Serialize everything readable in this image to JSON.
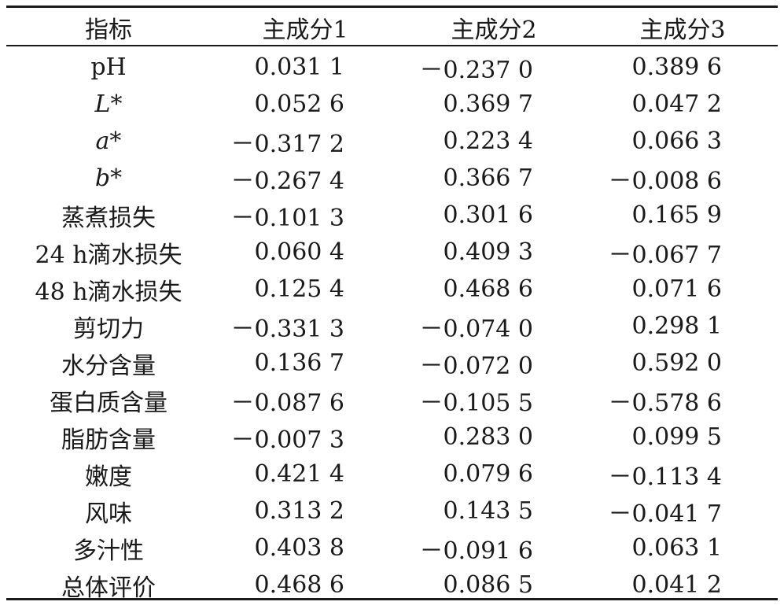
{
  "table": {
    "headers": [
      "指标",
      "主成分1",
      "主成分2",
      "主成分3"
    ],
    "rows": [
      {
        "label": "pH",
        "italic": false,
        "v": [
          "0.031 1",
          "－0.237 0",
          "0.389 6"
        ]
      },
      {
        "label": "L*",
        "italic": true,
        "v": [
          "0.052 6",
          "0.369 7",
          "0.047 2"
        ]
      },
      {
        "label": "a*",
        "italic": true,
        "v": [
          "－0.317 2",
          "0.223 4",
          "0.066 3"
        ]
      },
      {
        "label": "b*",
        "italic": true,
        "v": [
          "－0.267 4",
          "0.366 7",
          "－0.008 6"
        ]
      },
      {
        "label": "蒸煮损失",
        "italic": false,
        "v": [
          "－0.101 3",
          "0.301 6",
          "0.165 9"
        ]
      },
      {
        "label": "24 h滴水损失",
        "italic": false,
        "v": [
          "0.060 4",
          "0.409 3",
          "－0.067 7"
        ]
      },
      {
        "label": "48 h滴水损失",
        "italic": false,
        "v": [
          "0.125 4",
          "0.468 6",
          "0.071 6"
        ]
      },
      {
        "label": "剪切力",
        "italic": false,
        "v": [
          "－0.331 3",
          "－0.074 0",
          "0.298 1"
        ]
      },
      {
        "label": "水分含量",
        "italic": false,
        "v": [
          "0.136 7",
          "－0.072 0",
          "0.592 0"
        ]
      },
      {
        "label": "蛋白质含量",
        "italic": false,
        "v": [
          "－0.087 6",
          "－0.105 5",
          "－0.578 6"
        ]
      },
      {
        "label": "脂肪含量",
        "italic": false,
        "v": [
          "－0.007 3",
          "0.283 0",
          "0.099 5"
        ]
      },
      {
        "label": "嫩度",
        "italic": false,
        "v": [
          "0.421 4",
          "0.079 6",
          "－0.113 4"
        ]
      },
      {
        "label": "风味",
        "italic": false,
        "v": [
          "0.313 2",
          "0.143 5",
          "－0.041 7"
        ]
      },
      {
        "label": "多汁性",
        "italic": false,
        "v": [
          "0.403 8",
          "－0.091 6",
          "0.063 1"
        ]
      },
      {
        "label": "总体评价",
        "italic": false,
        "v": [
          "0.468 6",
          "0.086 5",
          "0.041 2"
        ]
      }
    ]
  }
}
